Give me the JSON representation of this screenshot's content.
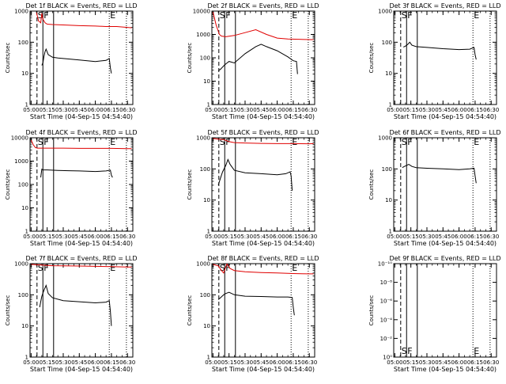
{
  "chart_data": [
    {
      "type": "line",
      "title": "Det 1f BLACK = Events, RED = LLD",
      "xlabel": "Start Time (04-Sep-15 04:54:40)",
      "ylabel": "Counts/sec",
      "y_scale": "log",
      "ylim": [
        1,
        1000
      ],
      "y_ticks": [
        "1",
        "10",
        "100",
        "1000"
      ],
      "xlim": [
        "04:59:00",
        "06:35:00"
      ],
      "x_ticks": [
        "05:00",
        "05:15",
        "05:30",
        "05:45",
        "06:00",
        "06:15",
        "06:30"
      ],
      "event_lines": [
        {
          "label": "S",
          "time": "05:05:30",
          "style": "dashed"
        },
        {
          "label": "F",
          "time": "05:11:00",
          "style": "solid"
        },
        {
          "label": "",
          "time": "05:21:00",
          "style": "solid"
        },
        {
          "label": "E",
          "time": "06:13:00",
          "style": "dotted"
        },
        {
          "label": "",
          "time": "06:29:00",
          "style": "dotted"
        }
      ],
      "series": [
        {
          "color": "#e00000",
          "x": [
            "05:05:00",
            "05:07:00",
            "05:09:00",
            "05:10:00",
            "05:11:00",
            "05:13:00",
            "05:15:00",
            "05:20:00",
            "05:30:00",
            "05:45:00",
            "06:00:00",
            "06:10:00",
            "06:20:00",
            "06:30:00",
            "06:34:00"
          ],
          "y": [
            900,
            480,
            420,
            850,
            550,
            420,
            380,
            370,
            360,
            340,
            330,
            320,
            320,
            300,
            290
          ]
        },
        {
          "color": "#000000",
          "x": [
            "05:10:00",
            "05:11:00",
            "05:12:00",
            "05:13:00",
            "05:14:00",
            "05:16:00",
            "05:20:00",
            "05:25:00",
            "05:35:00",
            "05:45:00",
            "06:00:00",
            "06:10:00",
            "06:13:00",
            "06:14:00",
            "06:15:00"
          ],
          "y": [
            18,
            22,
            35,
            50,
            60,
            40,
            33,
            31,
            29,
            27,
            24,
            26,
            30,
            15,
            10
          ]
        }
      ]
    },
    {
      "type": "line",
      "title": "Det 2f BLACK = Events, RED = LLD",
      "xlabel": "Start Time (04-Sep-15 04:54:40)",
      "ylabel": "Counts/sec",
      "y_scale": "log",
      "ylim": [
        1,
        10000
      ],
      "y_ticks": [
        "1",
        "10",
        "100",
        "1000",
        "10000"
      ],
      "xlim": [
        "04:59:00",
        "06:35:00"
      ],
      "x_ticks": [
        "05:00",
        "05:15",
        "05:30",
        "05:45",
        "06:00",
        "06:15",
        "06:30"
      ],
      "event_lines": [
        {
          "label": "S",
          "time": "05:05:30",
          "style": "dashed"
        },
        {
          "label": "F",
          "time": "05:11:00",
          "style": "solid"
        },
        {
          "label": "",
          "time": "05:21:00",
          "style": "solid"
        },
        {
          "label": "E",
          "time": "06:13:00",
          "style": "dotted"
        },
        {
          "label": "",
          "time": "06:29:00",
          "style": "dotted"
        }
      ],
      "series": [
        {
          "color": "#e00000",
          "x": [
            "05:00:00",
            "05:03:00",
            "05:06:00",
            "05:08:00",
            "05:12:00",
            "05:20:00",
            "05:30:00",
            "05:40:00",
            "05:50:00",
            "06:00:00",
            "06:10:00",
            "06:20:00",
            "06:30:00",
            "06:34:00"
          ],
          "y": [
            9000,
            2500,
            1000,
            850,
            800,
            900,
            1200,
            1600,
            1000,
            700,
            640,
            620,
            600,
            600
          ]
        },
        {
          "color": "#000000",
          "x": [
            "05:05:00",
            "05:07:00",
            "05:10:00",
            "05:12:00",
            "05:15:00",
            "05:20:00",
            "05:30:00",
            "05:40:00",
            "05:45:00",
            "05:50:00",
            "06:00:00",
            "06:10:00",
            "06:15:00",
            "06:18:00",
            "06:19:00"
          ],
          "y": [
            28,
            32,
            45,
            55,
            70,
            60,
            150,
            300,
            380,
            300,
            200,
            110,
            75,
            70,
            20
          ]
        }
      ]
    },
    {
      "type": "line",
      "title": "Det 3f BLACK = Events, RED = LLD",
      "xlabel": "Start Time (04-Sep-15 04:54:40)",
      "ylabel": "Counts/sec",
      "y_scale": "log",
      "ylim": [
        1,
        1000
      ],
      "y_ticks": [
        "1",
        "10",
        "100",
        "1000"
      ],
      "xlim": [
        "04:59:00",
        "06:35:00"
      ],
      "x_ticks": [
        "05:00",
        "05:15",
        "05:30",
        "05:45",
        "06:00",
        "06:15",
        "06:30"
      ],
      "event_lines": [
        {
          "label": "S",
          "time": "05:05:30",
          "style": "dashed"
        },
        {
          "label": "F",
          "time": "05:11:00",
          "style": "solid"
        },
        {
          "label": "",
          "time": "05:21:00",
          "style": "solid"
        },
        {
          "label": "E",
          "time": "06:13:00",
          "style": "dotted"
        },
        {
          "label": "",
          "time": "06:29:00",
          "style": "dotted"
        }
      ],
      "series": [
        {
          "color": "#000000",
          "x": [
            "05:08:00",
            "05:10:00",
            "05:12:00",
            "05:14:00",
            "05:16:00",
            "05:20:00",
            "05:30:00",
            "05:45:00",
            "06:00:00",
            "06:10:00",
            "06:14:00",
            "06:15:00",
            "06:16:00"
          ],
          "y": [
            70,
            75,
            85,
            100,
            80,
            72,
            68,
            62,
            58,
            60,
            68,
            40,
            28
          ]
        }
      ]
    },
    {
      "type": "line",
      "title": "Det 4f BLACK = Events, RED = LLD",
      "xlabel": "Start Time (04-Sep-15 04:54:40)",
      "ylabel": "Counts/sec",
      "y_scale": "log",
      "ylim": [
        1,
        10000
      ],
      "y_ticks": [
        "1",
        "10",
        "100",
        "1000",
        "10000"
      ],
      "xlim": [
        "04:59:00",
        "06:35:00"
      ],
      "x_ticks": [
        "05:00",
        "05:15",
        "05:30",
        "05:45",
        "06:00",
        "06:15",
        "06:30"
      ],
      "event_lines": [
        {
          "label": "S",
          "time": "05:05:30",
          "style": "dashed"
        },
        {
          "label": "F",
          "time": "05:11:00",
          "style": "solid"
        },
        {
          "label": "",
          "time": "05:21:00",
          "style": "solid"
        },
        {
          "label": "E",
          "time": "06:13:00",
          "style": "dotted"
        },
        {
          "label": "",
          "time": "06:29:00",
          "style": "dotted"
        }
      ],
      "series": [
        {
          "color": "#e00000",
          "x": [
            "05:00:00",
            "05:02:00",
            "05:04:00",
            "05:06:00",
            "05:10:00",
            "05:20:00",
            "05:30:00",
            "05:45:00",
            "06:00:00",
            "06:15:00",
            "06:30:00",
            "06:34:00"
          ],
          "y": [
            8000,
            5000,
            3800,
            3600,
            3600,
            3600,
            3600,
            3500,
            3500,
            3500,
            3400,
            3400
          ]
        },
        {
          "color": "#000000",
          "x": [
            "05:09:00",
            "05:10:00",
            "05:11:00",
            "05:15:00",
            "05:25:00",
            "05:35:00",
            "05:45:00",
            "06:00:00",
            "06:10:00",
            "06:14:00",
            "06:15:00",
            "06:16:00"
          ],
          "y": [
            200,
            450,
            420,
            420,
            400,
            390,
            380,
            360,
            380,
            410,
            250,
            200
          ]
        }
      ]
    },
    {
      "type": "line",
      "title": "Det 5f BLACK = Events, RED = LLD",
      "xlabel": "Start Time (04-Sep-15 04:54:40)",
      "ylabel": "Counts/sec",
      "y_scale": "log",
      "ylim": [
        1,
        1000
      ],
      "y_ticks": [
        "1",
        "10",
        "100",
        "1000"
      ],
      "xlim": [
        "04:59:00",
        "06:35:00"
      ],
      "x_ticks": [
        "05:00",
        "05:15",
        "05:30",
        "05:45",
        "06:00",
        "06:15",
        "06:30"
      ],
      "event_lines": [
        {
          "label": "S",
          "time": "05:05:30",
          "style": "dashed"
        },
        {
          "label": "F",
          "time": "05:11:00",
          "style": "solid"
        },
        {
          "label": "",
          "time": "05:21:00",
          "style": "solid"
        },
        {
          "label": "E",
          "time": "06:13:00",
          "style": "dotted"
        },
        {
          "label": "",
          "time": "06:29:00",
          "style": "dotted"
        }
      ],
      "series": [
        {
          "color": "#e00000",
          "x": [
            "05:00:00",
            "05:05:00",
            "05:10:00",
            "05:15:00",
            "05:20:00",
            "05:30:00",
            "05:45:00",
            "06:00:00",
            "06:15:00",
            "06:30:00",
            "06:34:00"
          ],
          "y": [
            950,
            900,
            880,
            750,
            700,
            680,
            660,
            650,
            650,
            640,
            650
          ]
        },
        {
          "color": "#000000",
          "x": [
            "05:05:00",
            "05:07:00",
            "05:09:00",
            "05:12:00",
            "05:14:00",
            "05:16:00",
            "05:20:00",
            "05:30:00",
            "05:45:00",
            "06:00:00",
            "06:08:00",
            "06:12:00",
            "06:13:00",
            "06:14:00"
          ],
          "y": [
            30,
            50,
            80,
            130,
            200,
            140,
            90,
            75,
            70,
            65,
            70,
            80,
            60,
            20
          ]
        }
      ]
    },
    {
      "type": "line",
      "title": "Det 6f BLACK = Events, RED = LLD",
      "xlabel": "Start Time (04-Sep-15 04:54:40)",
      "ylabel": "Counts/sec",
      "y_scale": "log",
      "ylim": [
        1,
        1000
      ],
      "y_ticks": [
        "1",
        "10",
        "100",
        "1000"
      ],
      "xlim": [
        "04:59:00",
        "06:35:00"
      ],
      "x_ticks": [
        "05:00",
        "05:15",
        "05:30",
        "05:45",
        "06:00",
        "06:15",
        "06:30"
      ],
      "event_lines": [
        {
          "label": "S",
          "time": "05:05:30",
          "style": "dashed"
        },
        {
          "label": "F",
          "time": "05:11:00",
          "style": "solid"
        },
        {
          "label": "",
          "time": "05:21:00",
          "style": "solid"
        },
        {
          "label": "E",
          "time": "06:13:00",
          "style": "dotted"
        },
        {
          "label": "",
          "time": "06:29:00",
          "style": "dotted"
        }
      ],
      "series": [
        {
          "color": "#000000",
          "x": [
            "05:07:00",
            "05:09:00",
            "05:11:00",
            "05:13:00",
            "05:16:00",
            "05:20:00",
            "05:30:00",
            "05:45:00",
            "06:00:00",
            "06:10:00",
            "06:14:00",
            "06:15:00",
            "06:16:00"
          ],
          "y": [
            110,
            120,
            130,
            140,
            120,
            110,
            105,
            100,
            95,
            100,
            105,
            60,
            35
          ]
        }
      ]
    },
    {
      "type": "line",
      "title": "Det 7f BLACK = Events, RED = LLD",
      "xlabel": "Start Time (04-Sep-15 04:54:40)",
      "ylabel": "Counts/sec",
      "y_scale": "log",
      "ylim": [
        1,
        1000
      ],
      "y_ticks": [
        "1",
        "10",
        "100",
        "1000"
      ],
      "xlim": [
        "04:59:00",
        "06:35:00"
      ],
      "x_ticks": [
        "05:00",
        "05:15",
        "05:30",
        "05:45",
        "06:00",
        "06:15",
        "06:30"
      ],
      "event_lines": [
        {
          "label": "S",
          "time": "05:05:30",
          "style": "dashed"
        },
        {
          "label": "F",
          "time": "05:11:00",
          "style": "solid"
        },
        {
          "label": "",
          "time": "05:21:00",
          "style": "solid"
        },
        {
          "label": "E",
          "time": "06:13:00",
          "style": "dotted"
        },
        {
          "label": "",
          "time": "06:29:00",
          "style": "dotted"
        }
      ],
      "series": [
        {
          "color": "#e00000",
          "x": [
            "05:00:00",
            "05:05:00",
            "05:10:00",
            "05:15:00",
            "05:20:00",
            "05:30:00",
            "05:45:00",
            "06:00:00",
            "06:15:00",
            "06:30:00",
            "06:34:00"
          ],
          "y": [
            950,
            920,
            900,
            880,
            860,
            850,
            840,
            820,
            800,
            780,
            780
          ]
        },
        {
          "color": "#000000",
          "x": [
            "05:08:00",
            "05:09:00",
            "05:10:00",
            "05:12:00",
            "05:14:00",
            "05:16:00",
            "05:20:00",
            "05:30:00",
            "05:45:00",
            "06:00:00",
            "06:10:00",
            "06:13:00",
            "06:14:00",
            "06:15:00"
          ],
          "y": [
            40,
            60,
            90,
            140,
            200,
            110,
            80,
            65,
            60,
            55,
            58,
            65,
            30,
            10
          ]
        }
      ]
    },
    {
      "type": "line",
      "title": "Det 8f BLACK = Events, RED = LLD",
      "xlabel": "Start Time (04-Sep-15 04:54:40)",
      "ylabel": "Counts/sec",
      "y_scale": "log",
      "ylim": [
        1,
        1000
      ],
      "y_ticks": [
        "1",
        "10",
        "100",
        "1000"
      ],
      "xlim": [
        "04:59:00",
        "06:35:00"
      ],
      "x_ticks": [
        "05:00",
        "05:15",
        "05:30",
        "05:45",
        "06:00",
        "06:15",
        "06:30"
      ],
      "event_lines": [
        {
          "label": "S",
          "time": "05:05:30",
          "style": "dashed"
        },
        {
          "label": "F",
          "time": "05:11:00",
          "style": "solid"
        },
        {
          "label": "",
          "time": "05:21:00",
          "style": "solid"
        },
        {
          "label": "E",
          "time": "06:13:00",
          "style": "dotted"
        },
        {
          "label": "",
          "time": "06:29:00",
          "style": "dotted"
        }
      ],
      "series": [
        {
          "color": "#e00000",
          "x": [
            "05:00:00",
            "05:05:00",
            "05:08:00",
            "05:10:00",
            "05:13:00",
            "05:16:00",
            "05:20:00",
            "05:30:00",
            "05:45:00",
            "06:00:00",
            "06:15:00",
            "06:30:00",
            "06:34:00"
          ],
          "y": [
            950,
            850,
            600,
            500,
            1000,
            700,
            600,
            550,
            520,
            500,
            480,
            470,
            470
          ]
        },
        {
          "color": "#000000",
          "x": [
            "05:05:00",
            "05:07:00",
            "05:10:00",
            "05:12:00",
            "05:15:00",
            "05:20:00",
            "05:30:00",
            "05:45:00",
            "06:00:00",
            "06:10:00",
            "06:14:00",
            "06:15:00",
            "06:16:00"
          ],
          "y": [
            70,
            80,
            100,
            110,
            120,
            100,
            90,
            88,
            85,
            85,
            82,
            40,
            22
          ]
        }
      ]
    },
    {
      "type": "line",
      "title": "Det 9f BLACK = Events, RED = LLD",
      "xlabel": "Start Time (04-Sep-15 04:54:40)",
      "ylabel": "Counts/sec",
      "y_scale": "log",
      "ylim": [
        1,
        1e-10
      ],
      "y_ticks": [
        "10⁰",
        "10⁻²",
        "10⁻⁴",
        "10⁻⁶",
        "10⁻⁸",
        "10⁻¹⁰"
      ],
      "xlim": [
        "04:59:00",
        "06:35:00"
      ],
      "x_ticks": [
        "05:00",
        "05:15",
        "05:30",
        "05:45",
        "06:00",
        "06:15",
        "06:30"
      ],
      "event_lines": [
        {
          "label": "S",
          "time": "05:05:30",
          "style": "dashed"
        },
        {
          "label": "F",
          "time": "05:11:00",
          "style": "solid"
        },
        {
          "label": "",
          "time": "05:21:00",
          "style": "solid"
        },
        {
          "label": "E",
          "time": "06:13:00",
          "style": "dotted"
        },
        {
          "label": "",
          "time": "06:29:00",
          "style": "dotted"
        }
      ],
      "event_labels_at": "bottom",
      "series": []
    }
  ]
}
